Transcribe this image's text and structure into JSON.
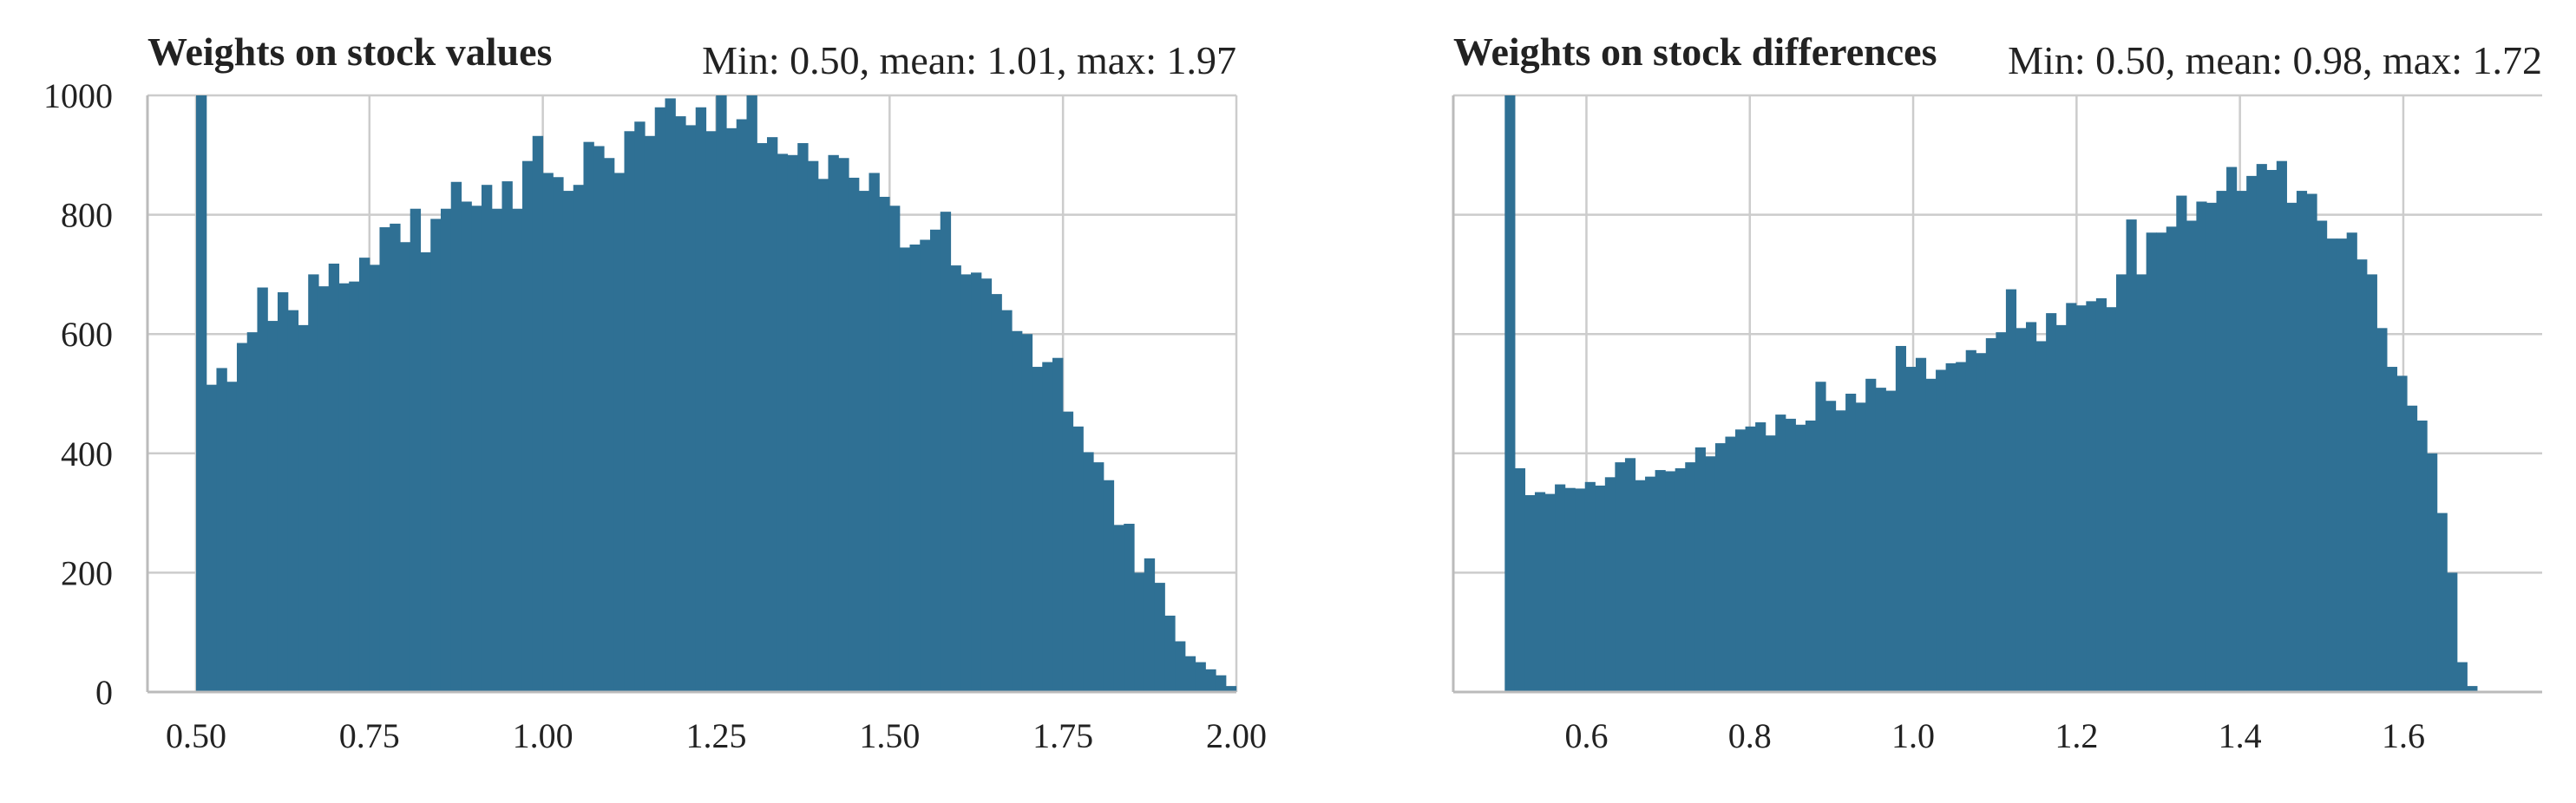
{
  "chart_data": [
    {
      "type": "bar",
      "title": "Weights on stock values",
      "stats": "Min: 0.50, mean: 1.01, max: 1.97",
      "color": "#2f7094",
      "ylim": [
        0,
        1000
      ],
      "y_ticks": [
        "0",
        "200",
        "400",
        "600",
        "800",
        "1000"
      ],
      "y_tick_values": [
        0,
        200,
        400,
        600,
        800,
        1000
      ],
      "xlim": [
        0.43,
        2.0
      ],
      "x_ticks": [
        "0.50",
        "0.75",
        "1.00",
        "1.25",
        "1.50",
        "1.75",
        "2.00"
      ],
      "x_tick_values": [
        0.5,
        0.75,
        1.0,
        1.25,
        1.5,
        1.75,
        2.0
      ],
      "grid": true,
      "bin_start": 0.5,
      "bin_width": 0.0147,
      "values": [
        1000,
        515,
        543,
        520,
        585,
        603,
        678,
        622,
        670,
        640,
        615,
        700,
        680,
        718,
        685,
        688,
        728,
        716,
        779,
        785,
        754,
        810,
        737,
        793,
        810,
        855,
        822,
        815,
        850,
        810,
        856,
        810,
        890,
        932,
        870,
        863,
        840,
        850,
        922,
        915,
        895,
        870,
        940,
        956,
        932,
        980,
        995,
        965,
        950,
        980,
        940,
        1000,
        945,
        960,
        1000,
        920,
        930,
        902,
        900,
        920,
        890,
        860,
        900,
        895,
        862,
        840,
        870,
        830,
        815,
        745,
        750,
        758,
        775,
        805,
        715,
        700,
        703,
        693,
        667,
        640,
        605,
        600,
        545,
        553,
        560,
        470,
        445,
        402,
        385,
        355,
        280,
        282,
        200,
        224,
        183,
        128,
        85,
        60,
        50,
        38,
        28,
        10
      ]
    },
    {
      "type": "bar",
      "title": "Weights on stock differences",
      "stats": "Min: 0.50, mean: 0.98, max: 1.72",
      "color": "#2f7094",
      "ylim": [
        0,
        1000
      ],
      "xlim": [
        0.437,
        1.77
      ],
      "x_ticks": [
        "0.6",
        "0.8",
        "1.0",
        "1.2",
        "1.4",
        "1.6"
      ],
      "x_tick_values": [
        0.6,
        0.8,
        1.0,
        1.2,
        1.4,
        1.6
      ],
      "grid": true,
      "bin_start": 0.5,
      "bin_width": 0.01227,
      "values": [
        1000,
        375,
        330,
        335,
        332,
        348,
        342,
        341,
        352,
        346,
        360,
        385,
        392,
        355,
        361,
        372,
        370,
        375,
        385,
        410,
        395,
        417,
        428,
        440,
        445,
        452,
        430,
        465,
        458,
        448,
        455,
        520,
        488,
        472,
        500,
        485,
        525,
        510,
        505,
        580,
        545,
        560,
        525,
        540,
        551,
        553,
        573,
        568,
        593,
        603,
        675,
        610,
        620,
        588,
        635,
        615,
        652,
        648,
        655,
        660,
        645,
        700,
        792,
        700,
        770,
        770,
        780,
        832,
        790,
        822,
        820,
        840,
        880,
        840,
        865,
        885,
        875,
        890,
        820,
        840,
        835,
        790,
        760,
        760,
        770,
        725,
        700,
        610,
        545,
        530,
        480,
        455,
        400,
        300,
        200,
        50,
        10
      ]
    }
  ]
}
